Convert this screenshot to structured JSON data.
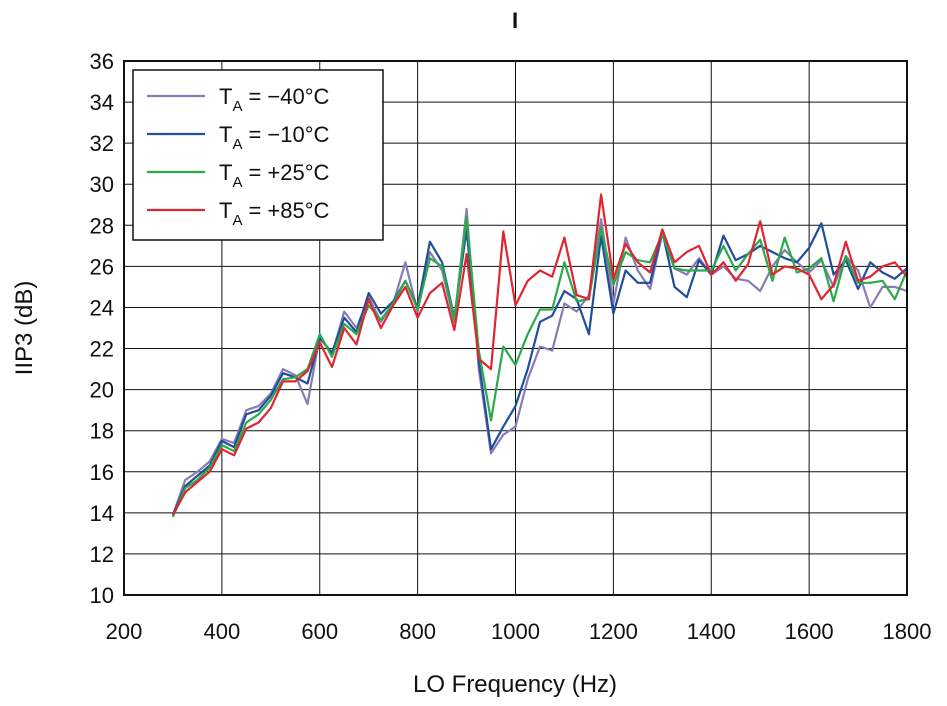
{
  "chart_data": {
    "type": "line",
    "title": "I",
    "xlabel": "LO Frequency (Hz)",
    "ylabel": "IIP3 (dB)",
    "xlim": [
      200,
      1800
    ],
    "ylim": [
      10,
      36
    ],
    "xticks": [
      200,
      400,
      600,
      800,
      1000,
      1200,
      1400,
      1600,
      1800
    ],
    "yticks": [
      10,
      12,
      14,
      16,
      18,
      20,
      22,
      24,
      26,
      28,
      30,
      32,
      34,
      36
    ],
    "grid": true,
    "legend_position": "top-left",
    "legend_main": "T",
    "legend_sub": "A",
    "x": [
      300,
      325,
      350,
      375,
      400,
      425,
      450,
      475,
      500,
      525,
      550,
      575,
      600,
      625,
      650,
      675,
      700,
      725,
      750,
      775,
      800,
      825,
      850,
      875,
      900,
      925,
      950,
      975,
      1000,
      1025,
      1050,
      1075,
      1100,
      1125,
      1150,
      1175,
      1200,
      1225,
      1250,
      1275,
      1300,
      1325,
      1350,
      1375,
      1400,
      1425,
      1450,
      1475,
      1500,
      1525,
      1550,
      1575,
      1600,
      1625,
      1650,
      1675,
      1700,
      1725,
      1750,
      1775,
      1800
    ],
    "series": [
      {
        "name": "= −40°C",
        "color": "#8a7ab5",
        "values": [
          13.9,
          15.6,
          16.0,
          16.5,
          17.6,
          17.4,
          19.0,
          19.2,
          19.8,
          21.0,
          20.7,
          19.3,
          22.6,
          21.7,
          23.8,
          23.0,
          24.5,
          23.3,
          24.2,
          26.2,
          23.8,
          26.7,
          25.8,
          23.3,
          28.8,
          21.0,
          16.9,
          17.8,
          18.2,
          20.5,
          22.1,
          21.9,
          24.2,
          23.8,
          24.6,
          28.3,
          24.2,
          27.4,
          25.8,
          24.9,
          27.6,
          25.9,
          25.6,
          26.4,
          25.6,
          26.0,
          25.4,
          25.3,
          24.8,
          26.0,
          26.8,
          26.2,
          25.7,
          26.3,
          25.0,
          26.5,
          25.8,
          24.0,
          25.0,
          25.0,
          24.8
        ]
      },
      {
        "name": "= −10°C",
        "color": "#1f4f9b",
        "values": [
          13.9,
          15.3,
          15.8,
          16.3,
          17.5,
          17.2,
          18.8,
          19.0,
          19.7,
          20.8,
          20.6,
          20.3,
          22.5,
          21.8,
          23.5,
          22.8,
          24.7,
          23.7,
          24.3,
          25.3,
          24.0,
          27.2,
          26.2,
          23.5,
          27.8,
          21.4,
          17.1,
          18.2,
          19.2,
          21.0,
          23.3,
          23.6,
          24.8,
          24.4,
          22.7,
          27.5,
          23.7,
          25.8,
          25.2,
          25.2,
          27.7,
          25.0,
          24.5,
          26.3,
          25.6,
          27.5,
          26.3,
          26.6,
          27.0,
          26.7,
          26.4,
          26.2,
          26.9,
          28.1,
          25.6,
          26.3,
          24.9,
          26.2,
          25.7,
          25.4,
          25.9
        ]
      },
      {
        "name": "= +25°C",
        "color": "#2aaa4a",
        "values": [
          13.8,
          15.2,
          15.6,
          16.2,
          17.3,
          17.0,
          18.4,
          18.8,
          19.5,
          20.5,
          20.6,
          21.0,
          22.7,
          21.6,
          23.2,
          22.7,
          24.1,
          23.4,
          24.2,
          25.3,
          23.9,
          26.4,
          26.0,
          23.4,
          28.4,
          21.9,
          18.5,
          22.1,
          21.2,
          22.7,
          23.9,
          23.9,
          26.2,
          24.3,
          24.4,
          27.9,
          25.1,
          26.7,
          26.3,
          26.2,
          27.6,
          25.9,
          25.8,
          25.8,
          25.8,
          27.0,
          25.8,
          26.6,
          27.3,
          25.3,
          27.4,
          25.7,
          25.9,
          26.4,
          24.3,
          26.5,
          25.2,
          25.2,
          25.3,
          24.4,
          25.8
        ]
      },
      {
        "name": "= +85°C",
        "color": "#e02530",
        "values": [
          13.9,
          15.0,
          15.5,
          16.0,
          17.1,
          16.8,
          18.1,
          18.4,
          19.1,
          20.4,
          20.4,
          20.9,
          22.3,
          21.1,
          23.0,
          22.2,
          24.4,
          23.0,
          24.1,
          25.0,
          23.5,
          24.7,
          25.2,
          22.9,
          26.6,
          21.5,
          21.0,
          27.7,
          24.1,
          25.3,
          25.8,
          25.5,
          27.4,
          24.6,
          24.4,
          29.5,
          25.4,
          27.1,
          26.2,
          25.7,
          27.8,
          26.2,
          26.7,
          27.0,
          25.6,
          26.2,
          25.3,
          26.1,
          28.2,
          25.6,
          26.0,
          25.9,
          25.6,
          24.4,
          25.1,
          27.2,
          25.3,
          25.5,
          26.0,
          26.2,
          25.5
        ]
      }
    ]
  }
}
